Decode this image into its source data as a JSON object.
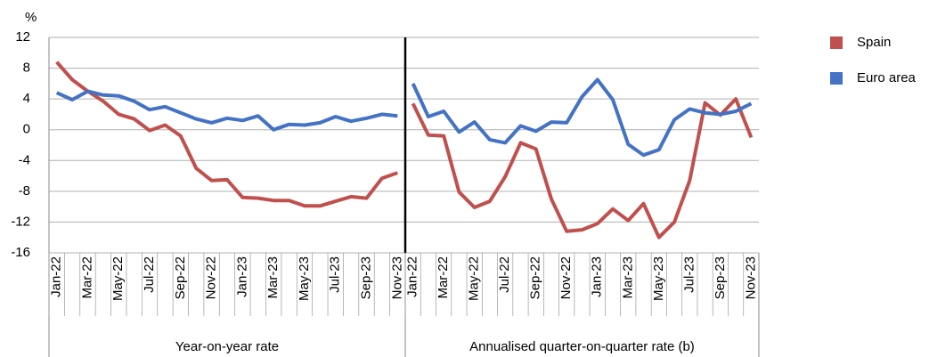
{
  "chart_data": [
    {
      "type": "line",
      "ylabel": "%",
      "xlabel": "Year-on-year rate",
      "categories": [
        "Jan-22",
        null,
        "Mar-22",
        null,
        "May-22",
        null,
        "Jul-22",
        null,
        "Sep-22",
        null,
        "Nov-22",
        null,
        "Jan-23",
        null,
        "Mar-23",
        null,
        "May-23",
        null,
        "Jul-23",
        null,
        "Sep-23",
        null,
        "Nov-23"
      ],
      "ylim": [
        -16,
        12
      ],
      "yticks": [
        -16,
        -12,
        -8,
        -4,
        0,
        4,
        8,
        12
      ],
      "grid": true,
      "series": [
        {
          "name": "Spain",
          "color": "#c0504d",
          "values": [
            8.8,
            6.5,
            5.0,
            3.7,
            2.0,
            1.4,
            -0.1,
            0.6,
            -0.8,
            -5.0,
            -6.6,
            -6.5,
            -8.8,
            -8.9,
            -9.2,
            -9.2,
            -9.9,
            -9.9,
            -9.3,
            -8.7,
            -8.9,
            -6.3,
            -5.6
          ]
        },
        {
          "name": "Euro area",
          "color": "#4472c4",
          "values": [
            4.8,
            3.9,
            5.0,
            4.5,
            4.4,
            3.7,
            2.6,
            3.0,
            2.2,
            1.4,
            0.9,
            1.5,
            1.2,
            1.8,
            0.0,
            0.7,
            0.6,
            0.9,
            1.7,
            1.1,
            1.5,
            2.0,
            1.8
          ]
        }
      ]
    },
    {
      "type": "line",
      "xlabel": "Annualised quarter-on-quarter rate (b)",
      "categories": [
        "Jan-22",
        null,
        "Mar-22",
        null,
        "May-22",
        null,
        "Jul-22",
        null,
        "Sep-22",
        null,
        "Nov-22",
        null,
        "Jan-23",
        null,
        "Mar-23",
        null,
        "May-23",
        null,
        "Jul-23",
        null,
        "Sep-23",
        null,
        "Nov-23"
      ],
      "ylim": [
        -16,
        12
      ],
      "series": [
        {
          "color": "#c0504d",
          "values": [
            3.4,
            -0.7,
            -0.8,
            -8.1,
            -10.1,
            -9.3,
            -6.1,
            -1.7,
            -2.5,
            -9.0,
            -13.2,
            -13.0,
            -12.2,
            -10.3,
            -11.8,
            -9.6,
            -14.0,
            -12.0,
            -6.6,
            3.5,
            1.9,
            4.0,
            -1.0
          ]
        },
        {
          "color": "#4472c4",
          "values": [
            6.0,
            1.7,
            2.4,
            -0.3,
            1.0,
            -1.3,
            -1.7,
            0.5,
            -0.2,
            1.0,
            0.9,
            4.3,
            6.5,
            3.9,
            -1.9,
            -3.3,
            -2.6,
            1.3,
            2.7,
            2.2,
            2.0,
            2.4,
            3.4
          ]
        }
      ]
    }
  ]
}
